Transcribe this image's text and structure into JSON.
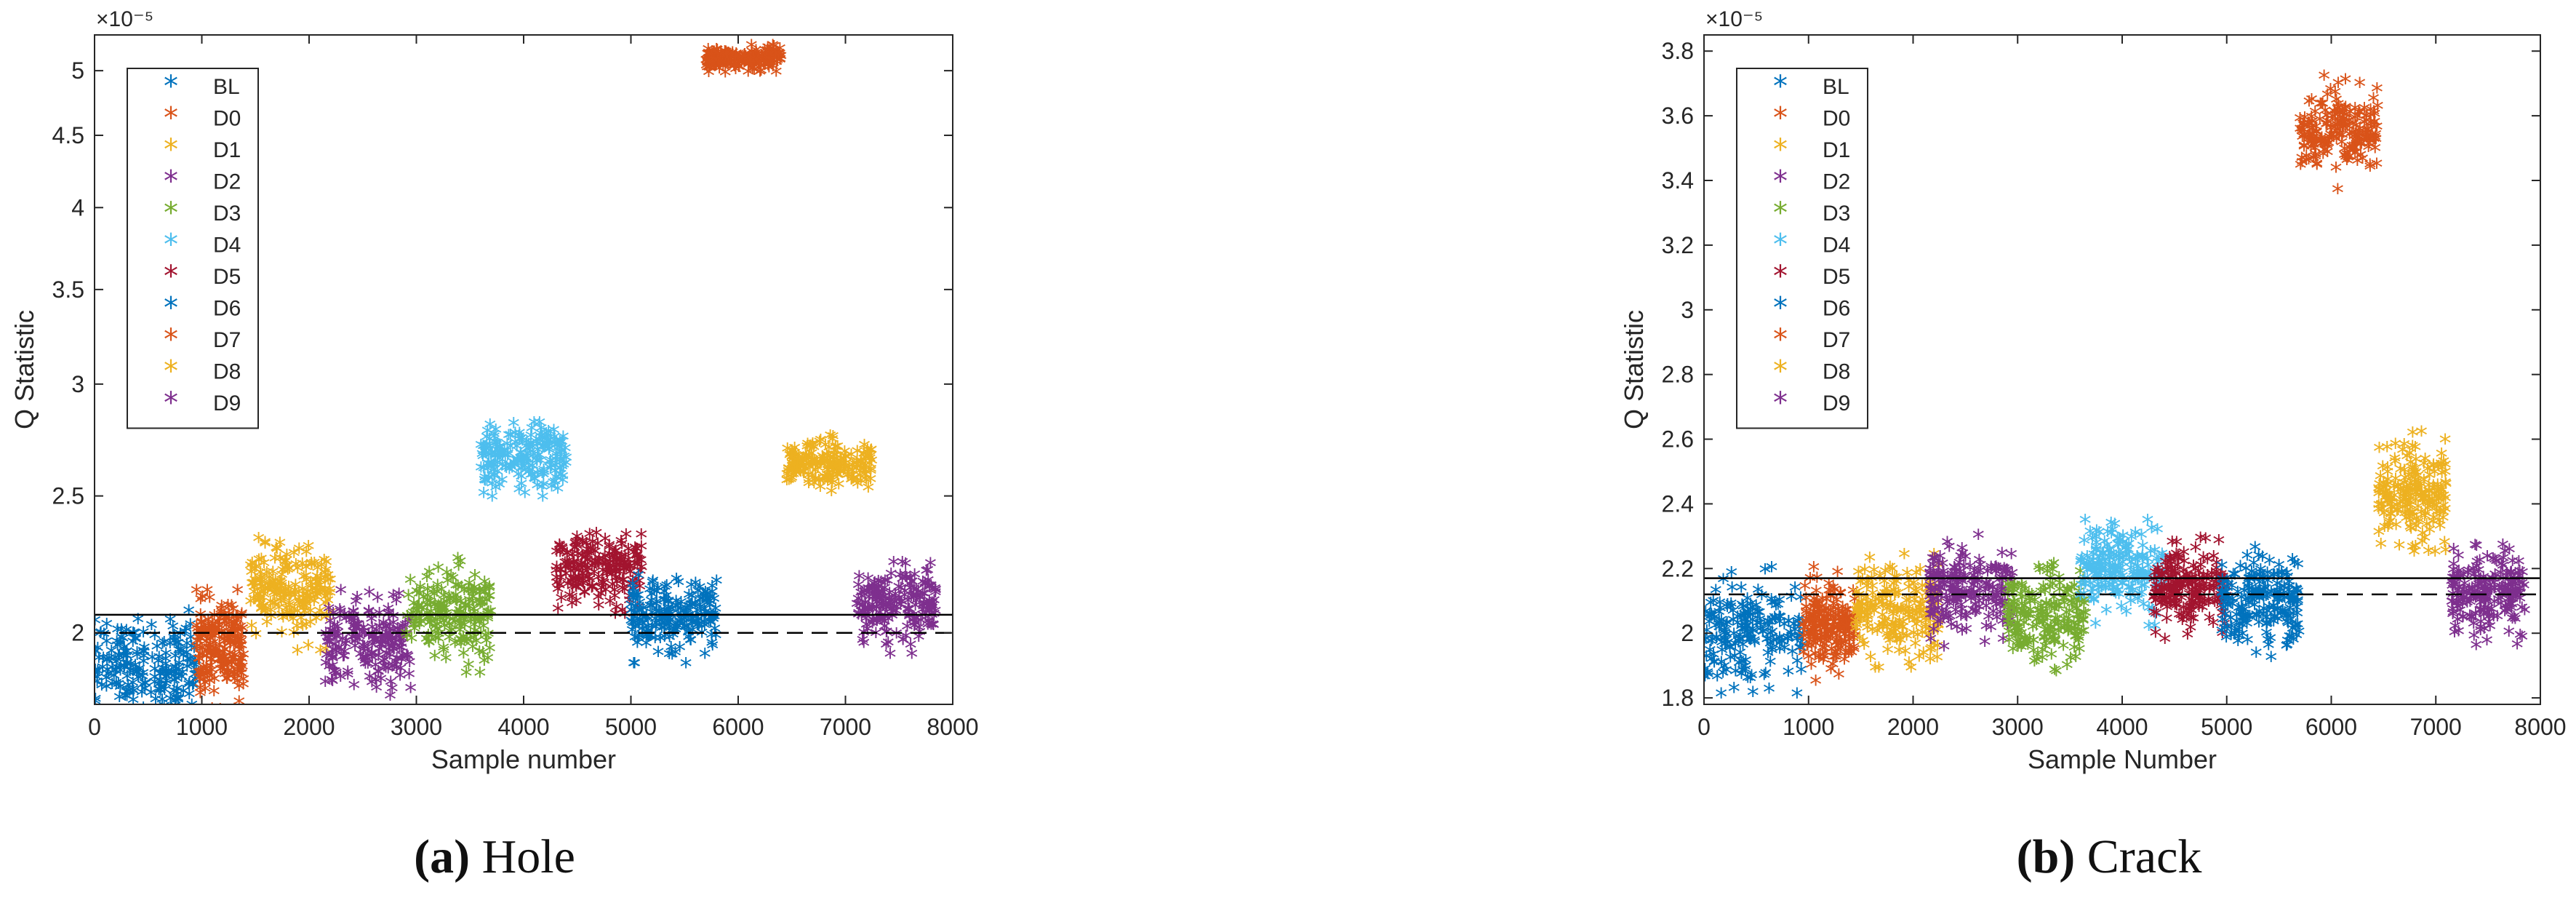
{
  "panels": [
    {
      "caption_label": "(a)",
      "caption_text": "Hole"
    },
    {
      "caption_label": "(b)",
      "caption_text": "Crack"
    }
  ],
  "chart_data": [
    {
      "type": "scatter",
      "title": "",
      "xlabel": "Sample number",
      "ylabel": "Q Statistic",
      "y_exponent_label": "×10⁻⁵",
      "xlim": [
        0,
        8000
      ],
      "ylim": [
        1.78,
        5.3
      ],
      "y_scale": "log",
      "xticks": [
        0,
        1000,
        2000,
        3000,
        4000,
        5000,
        6000,
        7000,
        8000
      ],
      "yticks": [
        2,
        2.5,
        3,
        3.5,
        4,
        4.5,
        5
      ],
      "grid": false,
      "legend_position": "top-left",
      "marker": "*",
      "threshold_solid": 2.06,
      "threshold_dashed": 2.0,
      "series": [
        {
          "name": "BL",
          "color": "#0072BD",
          "x_range": [
            0,
            950
          ],
          "y_center": 1.9,
          "y_spread": 0.09
        },
        {
          "name": "D0",
          "color": "#D95319",
          "x_range": [
            950,
            1400
          ],
          "y_center": 1.95,
          "y_spread": 0.1
        },
        {
          "name": "D1",
          "color": "#EDB120",
          "x_range": [
            1450,
            2200
          ],
          "y_center": 2.14,
          "y_spread": 0.1
        },
        {
          "name": "D2",
          "color": "#7E2F8E",
          "x_range": [
            2150,
            2950
          ],
          "y_center": 1.97,
          "y_spread": 0.09
        },
        {
          "name": "D3",
          "color": "#77AC30",
          "x_range": [
            2900,
            3700
          ],
          "y_center": 2.07,
          "y_spread": 0.1
        },
        {
          "name": "D4",
          "color": "#4DBEEE",
          "x_range": [
            3600,
            4400
          ],
          "y_center": 2.65,
          "y_spread": 0.1
        },
        {
          "name": "D5",
          "color": "#A2142F",
          "x_range": [
            4300,
            5100
          ],
          "y_center": 2.22,
          "y_spread": 0.08
        },
        {
          "name": "D6",
          "color": "#0072BD",
          "x_range": [
            5000,
            5800
          ],
          "y_center": 2.06,
          "y_spread": 0.08
        },
        {
          "name": "D7",
          "color": "#D95319",
          "x_range": [
            5700,
            6400
          ],
          "y_center": 5.1,
          "y_spread": 0.06
        },
        {
          "name": "D8",
          "color": "#EDB120",
          "x_range": [
            6450,
            7250
          ],
          "y_center": 2.63,
          "y_spread": 0.07
        },
        {
          "name": "D9",
          "color": "#7E2F8E",
          "x_range": [
            7100,
            7850
          ],
          "y_center": 2.09,
          "y_spread": 0.08
        }
      ]
    },
    {
      "type": "scatter",
      "title": "",
      "xlabel": "Sample Number",
      "ylabel": "Q Statistic",
      "y_exponent_label": "×10⁻⁵",
      "xlim": [
        0,
        8000
      ],
      "ylim": [
        1.78,
        3.85
      ],
      "y_scale": "linear",
      "xticks": [
        0,
        1000,
        2000,
        3000,
        4000,
        5000,
        6000,
        7000,
        8000
      ],
      "yticks": [
        1.8,
        2,
        2.2,
        2.4,
        2.6,
        2.8,
        3,
        3.2,
        3.4,
        3.6,
        3.8
      ],
      "grid": false,
      "legend_position": "top-left",
      "marker": "*",
      "threshold_solid": 2.17,
      "threshold_dashed": 2.12,
      "series": [
        {
          "name": "BL",
          "color": "#0072BD",
          "x_range": [
            0,
            950
          ],
          "y_center": 2.01,
          "y_spread": 0.1
        },
        {
          "name": "D0",
          "color": "#D95319",
          "x_range": [
            950,
            1450
          ],
          "y_center": 2.03,
          "y_spread": 0.09
        },
        {
          "name": "D1",
          "color": "#EDB120",
          "x_range": [
            1450,
            2250
          ],
          "y_center": 2.07,
          "y_spread": 0.09
        },
        {
          "name": "D2",
          "color": "#7E2F8E",
          "x_range": [
            2150,
            2950
          ],
          "y_center": 2.13,
          "y_spread": 0.09
        },
        {
          "name": "D3",
          "color": "#77AC30",
          "x_range": [
            2900,
            3650
          ],
          "y_center": 2.05,
          "y_spread": 0.09
        },
        {
          "name": "D4",
          "color": "#4DBEEE",
          "x_range": [
            3600,
            4400
          ],
          "y_center": 2.2,
          "y_spread": 0.09
        },
        {
          "name": "D5",
          "color": "#A2142F",
          "x_range": [
            4300,
            5000
          ],
          "y_center": 2.14,
          "y_spread": 0.08
        },
        {
          "name": "D6",
          "color": "#0072BD",
          "x_range": [
            4950,
            5700
          ],
          "y_center": 2.1,
          "y_spread": 0.09
        },
        {
          "name": "D7",
          "color": "#D95319",
          "x_range": [
            5700,
            6450
          ],
          "y_center": 3.55,
          "y_spread": 0.09
        },
        {
          "name": "D8",
          "color": "#EDB120",
          "x_range": [
            6450,
            7100
          ],
          "y_center": 2.43,
          "y_spread": 0.1
        },
        {
          "name": "D9",
          "color": "#7E2F8E",
          "x_range": [
            7150,
            7850
          ],
          "y_center": 2.12,
          "y_spread": 0.08
        }
      ]
    }
  ]
}
